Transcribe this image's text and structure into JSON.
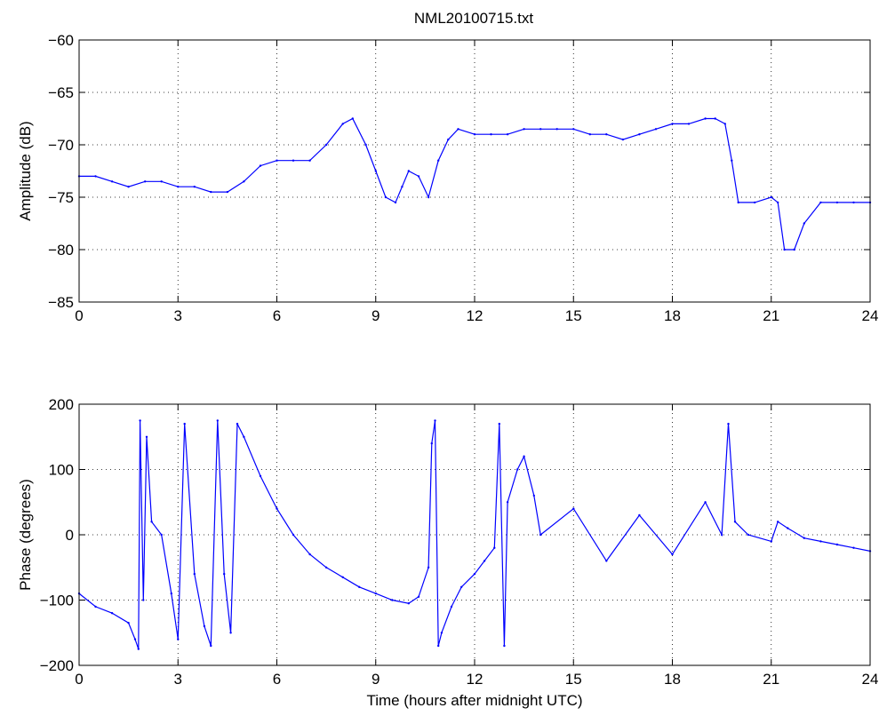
{
  "title": "NML20100715.txt",
  "colors": {
    "line": "#0000ff",
    "axes": "#000000",
    "grid": "#000000",
    "background": "#ffffff"
  },
  "chart_data": [
    {
      "type": "line",
      "title": "NML20100715.txt",
      "xlabel": "",
      "ylabel": "Amplitude (dB)",
      "xlim": [
        0,
        24
      ],
      "ylim": [
        -85,
        -60
      ],
      "xticks": [
        "0",
        "3",
        "6",
        "9",
        "12",
        "15",
        "18",
        "21",
        "24"
      ],
      "yticks": [
        "−60",
        "−65",
        "−70",
        "−75",
        "−80",
        "−85"
      ],
      "grid": true,
      "series": [
        {
          "x": [
            0,
            0.5,
            1,
            1.5,
            2,
            2.5,
            3,
            3.5,
            4,
            4.5,
            5,
            5.5,
            6,
            6.5,
            7,
            7.5,
            8,
            8.3,
            8.7,
            9,
            9.3,
            9.6,
            9.8,
            10,
            10.3,
            10.6,
            10.9,
            11.2,
            11.5,
            12,
            12.5,
            13,
            13.5,
            14,
            14.5,
            15,
            15.5,
            16,
            16.5,
            17,
            17.5,
            18,
            18.5,
            19,
            19.3,
            19.6,
            19.8,
            20,
            20.5,
            21,
            21.2,
            21.4,
            21.7,
            22,
            22.5,
            23,
            23.5,
            24
          ],
          "values": [
            -73,
            -73,
            -73.5,
            -74,
            -73.5,
            -73.5,
            -74,
            -74,
            -74.5,
            -74.5,
            -73.5,
            -72,
            -71.5,
            -71.5,
            -71.5,
            -70,
            -68,
            -67.5,
            -70,
            -72.5,
            -75,
            -75.5,
            -74,
            -72.5,
            -73,
            -75,
            -71.5,
            -69.5,
            -68.5,
            -69,
            -69,
            -69,
            -68.5,
            -68.5,
            -68.5,
            -68.5,
            -69,
            -69,
            -69.5,
            -69,
            -68.5,
            -68,
            -68,
            -67.5,
            -67.5,
            -68,
            -71.5,
            -75.5,
            -75.5,
            -75,
            -75.5,
            -80,
            -80,
            -77.5,
            -75.5,
            -75.5,
            -75.5,
            -75.5
          ]
        }
      ]
    },
    {
      "type": "line",
      "title": "",
      "xlabel": "Time (hours after midnight UTC)",
      "ylabel": "Phase (degrees)",
      "xlim": [
        0,
        24
      ],
      "ylim": [
        -200,
        200
      ],
      "xticks": [
        "0",
        "3",
        "6",
        "9",
        "12",
        "15",
        "18",
        "21",
        "24"
      ],
      "yticks": [
        "200",
        "100",
        "0",
        "−100",
        "−200"
      ],
      "grid": true,
      "series": [
        {
          "x": [
            0,
            0.5,
            1,
            1.5,
            1.7,
            1.8,
            1.85,
            1.95,
            2.05,
            2.2,
            2.5,
            2.8,
            3.0,
            3.2,
            3.5,
            3.8,
            4.0,
            4.2,
            4.4,
            4.6,
            4.8,
            5.0,
            5.5,
            6,
            6.5,
            7,
            7.5,
            8,
            8.5,
            9,
            9.5,
            10,
            10.3,
            10.6,
            10.7,
            10.8,
            10.9,
            11,
            11.3,
            11.6,
            12,
            12.3,
            12.6,
            12.75,
            12.9,
            13,
            13.3,
            13.5,
            13.8,
            14,
            15,
            16,
            17,
            18,
            19,
            19.5,
            19.7,
            19.9,
            20.3,
            21,
            21.2,
            21.5,
            22,
            22.5,
            23,
            23.5,
            24
          ],
          "values": [
            -90,
            -110,
            -120,
            -135,
            -160,
            -175,
            175,
            -100,
            150,
            20,
            0,
            -90,
            -160,
            170,
            -60,
            -140,
            -170,
            175,
            -60,
            -150,
            170,
            150,
            90,
            40,
            0,
            -30,
            -50,
            -65,
            -80,
            -90,
            -100,
            -105,
            -95,
            -50,
            140,
            175,
            -170,
            -150,
            -110,
            -80,
            -60,
            -40,
            -20,
            170,
            -170,
            50,
            100,
            120,
            60,
            0,
            40,
            -40,
            30,
            -30,
            50,
            0,
            170,
            20,
            0,
            -10,
            20,
            10,
            -5,
            -10,
            -15,
            -20,
            -25
          ]
        }
      ]
    }
  ]
}
